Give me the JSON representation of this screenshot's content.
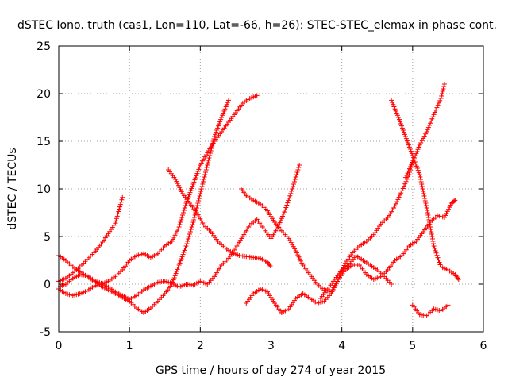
{
  "chart_data": {
    "type": "scatter",
    "title": "dSTEC Iono. truth (cas1, Lon=110, Lat=-66, h=26): STEC-STEC_elemax in phase cont.",
    "xlabel": "GPS time / hours of day 274 of year 2015",
    "ylabel": "dSTEC  / TECUs",
    "xlim": [
      0,
      6
    ],
    "ylim": [
      -5,
      25
    ],
    "xticks": [
      "0",
      "1",
      "2",
      "3",
      "4",
      "5",
      "6"
    ],
    "yticks": [
      "-5",
      "0",
      "5",
      "10",
      "15",
      "20",
      "25"
    ],
    "grid": true,
    "marker": "+",
    "series_color": "#ff0000",
    "series": [
      {
        "x": [
          0.0,
          0.1,
          0.2,
          0.3,
          0.4,
          0.5,
          0.6,
          0.7,
          0.8,
          0.9
        ],
        "y": [
          0.3,
          0.6,
          1.2,
          1.8,
          2.6,
          3.3,
          4.2,
          5.3,
          6.4,
          9.1
        ]
      },
      {
        "x": [
          0.0,
          0.1,
          0.2,
          0.3,
          0.4,
          0.5,
          0.6,
          0.7,
          0.8,
          0.9,
          1.0,
          1.1,
          1.2,
          1.3,
          1.4,
          1.5,
          1.6,
          1.7,
          1.8,
          1.9,
          2.0,
          2.1,
          2.2,
          2.3,
          2.4
        ],
        "y": [
          3.0,
          2.5,
          1.8,
          1.3,
          0.8,
          0.3,
          -0.2,
          -0.6,
          -1.0,
          -1.4,
          -1.8,
          -2.5,
          -3.0,
          -2.5,
          -1.8,
          -1.0,
          0.0,
          2.0,
          4.0,
          6.5,
          9.5,
          12.5,
          15.5,
          17.5,
          19.3
        ]
      },
      {
        "x": [
          0.0,
          0.1,
          0.2,
          0.3,
          0.4,
          0.5,
          0.6,
          0.7,
          0.8,
          0.9,
          1.0,
          1.1,
          1.2,
          1.3,
          1.4,
          1.5,
          1.6,
          1.7,
          1.8,
          1.9,
          2.0,
          2.1,
          2.2,
          2.3,
          2.4,
          2.5,
          2.6,
          2.7,
          2.8,
          2.9,
          3.0,
          3.1,
          3.2,
          3.3,
          3.4
        ],
        "y": [
          -0.3,
          0.0,
          0.6,
          1.0,
          0.9,
          0.4,
          0.1,
          -0.3,
          -0.8,
          -1.2,
          -1.6,
          -1.2,
          -0.6,
          -0.2,
          0.2,
          0.3,
          0.1,
          -0.3,
          0.0,
          -0.1,
          0.3,
          0.0,
          0.8,
          2.0,
          2.7,
          3.8,
          5.0,
          6.2,
          6.8,
          5.8,
          4.8,
          6.0,
          7.8,
          10.0,
          12.5
        ]
      },
      {
        "x": [
          0.0,
          0.1,
          0.2,
          0.3,
          0.4,
          0.5,
          0.6,
          0.7,
          0.8,
          0.9,
          1.0,
          1.1,
          1.2,
          1.3,
          1.4,
          1.5,
          1.6,
          1.7,
          1.8,
          1.9,
          2.0,
          2.1,
          2.2,
          2.3,
          2.4,
          2.5,
          2.6,
          2.7,
          2.8
        ],
        "y": [
          -0.5,
          -1.0,
          -1.2,
          -1.0,
          -0.7,
          -0.2,
          0.0,
          0.3,
          0.8,
          1.5,
          2.5,
          3.0,
          3.2,
          2.8,
          3.2,
          4.0,
          4.5,
          6.0,
          8.5,
          10.5,
          12.5,
          13.8,
          15.0,
          16.0,
          17.0,
          18.0,
          19.0,
          19.5,
          19.8
        ]
      },
      {
        "x": [
          1.55,
          1.65,
          1.75,
          1.85,
          1.95,
          2.05,
          2.15,
          2.25,
          2.35,
          2.45,
          2.55,
          2.65,
          2.75,
          2.85,
          2.95,
          3.0
        ],
        "y": [
          12.0,
          11.0,
          9.5,
          8.5,
          7.5,
          6.2,
          5.5,
          4.5,
          3.8,
          3.3,
          3.0,
          2.9,
          2.8,
          2.7,
          2.3,
          1.8
        ]
      },
      {
        "x": [
          2.58,
          2.65,
          2.75,
          2.85,
          2.95,
          3.05,
          3.15,
          3.25,
          3.35,
          3.45,
          3.55,
          3.65,
          3.75,
          3.85,
          3.95,
          4.05,
          4.15,
          4.25,
          4.35,
          4.45,
          4.55,
          4.65,
          4.75,
          4.85,
          4.95,
          5.0
        ],
        "y": [
          10.0,
          9.3,
          8.8,
          8.4,
          7.7,
          6.5,
          5.6,
          4.8,
          3.5,
          2.0,
          1.0,
          0.0,
          -0.6,
          -0.8,
          0.5,
          2.2,
          3.3,
          4.0,
          4.5,
          5.2,
          6.3,
          7.0,
          8.2,
          9.8,
          11.5,
          13.0
        ]
      },
      {
        "x": [
          4.7,
          4.8,
          4.9,
          5.0,
          5.1,
          5.2,
          5.3,
          5.4,
          5.5,
          5.6,
          5.65
        ],
        "y": [
          19.3,
          17.5,
          15.5,
          13.5,
          11.5,
          8.0,
          4.0,
          1.8,
          1.5,
          1.0,
          0.5
        ]
      },
      {
        "x": [
          4.9,
          5.0,
          5.1,
          5.2,
          5.3,
          5.4,
          5.45
        ],
        "y": [
          11.2,
          12.8,
          14.6,
          16.0,
          17.8,
          19.5,
          21.0
        ]
      },
      {
        "x": [
          2.65,
          2.75,
          2.85,
          2.95,
          3.05,
          3.15,
          3.25,
          3.35,
          3.45,
          3.55,
          3.65,
          3.75,
          3.85,
          3.95,
          4.05,
          4.15,
          4.25,
          4.35,
          4.45,
          4.55,
          4.65,
          4.75,
          4.85,
          4.95,
          5.05,
          5.15,
          5.25,
          5.35,
          5.45,
          5.55,
          5.6
        ],
        "y": [
          -2.0,
          -1.0,
          -0.5,
          -0.8,
          -2.0,
          -3.0,
          -2.6,
          -1.5,
          -1.0,
          -1.5,
          -2.0,
          -1.8,
          -1.0,
          0.5,
          1.5,
          2.0,
          2.0,
          1.0,
          0.5,
          0.8,
          1.5,
          2.5,
          3.0,
          4.0,
          4.5,
          5.5,
          6.5,
          7.2,
          7.0,
          8.5,
          8.8
        ]
      },
      {
        "x": [
          5.0,
          5.1,
          5.2,
          5.3,
          5.4,
          5.5
        ],
        "y": [
          -2.2,
          -3.2,
          -3.3,
          -2.6,
          -2.8,
          -2.2
        ]
      },
      {
        "x": [
          3.7,
          3.8,
          3.9,
          4.0,
          4.1,
          4.2,
          4.3,
          4.4,
          4.5,
          4.6,
          4.7
        ],
        "y": [
          -1.5,
          -0.5,
          0.5,
          1.5,
          2.0,
          3.0,
          2.5,
          2.0,
          1.5,
          0.8,
          0.0
        ]
      }
    ]
  }
}
